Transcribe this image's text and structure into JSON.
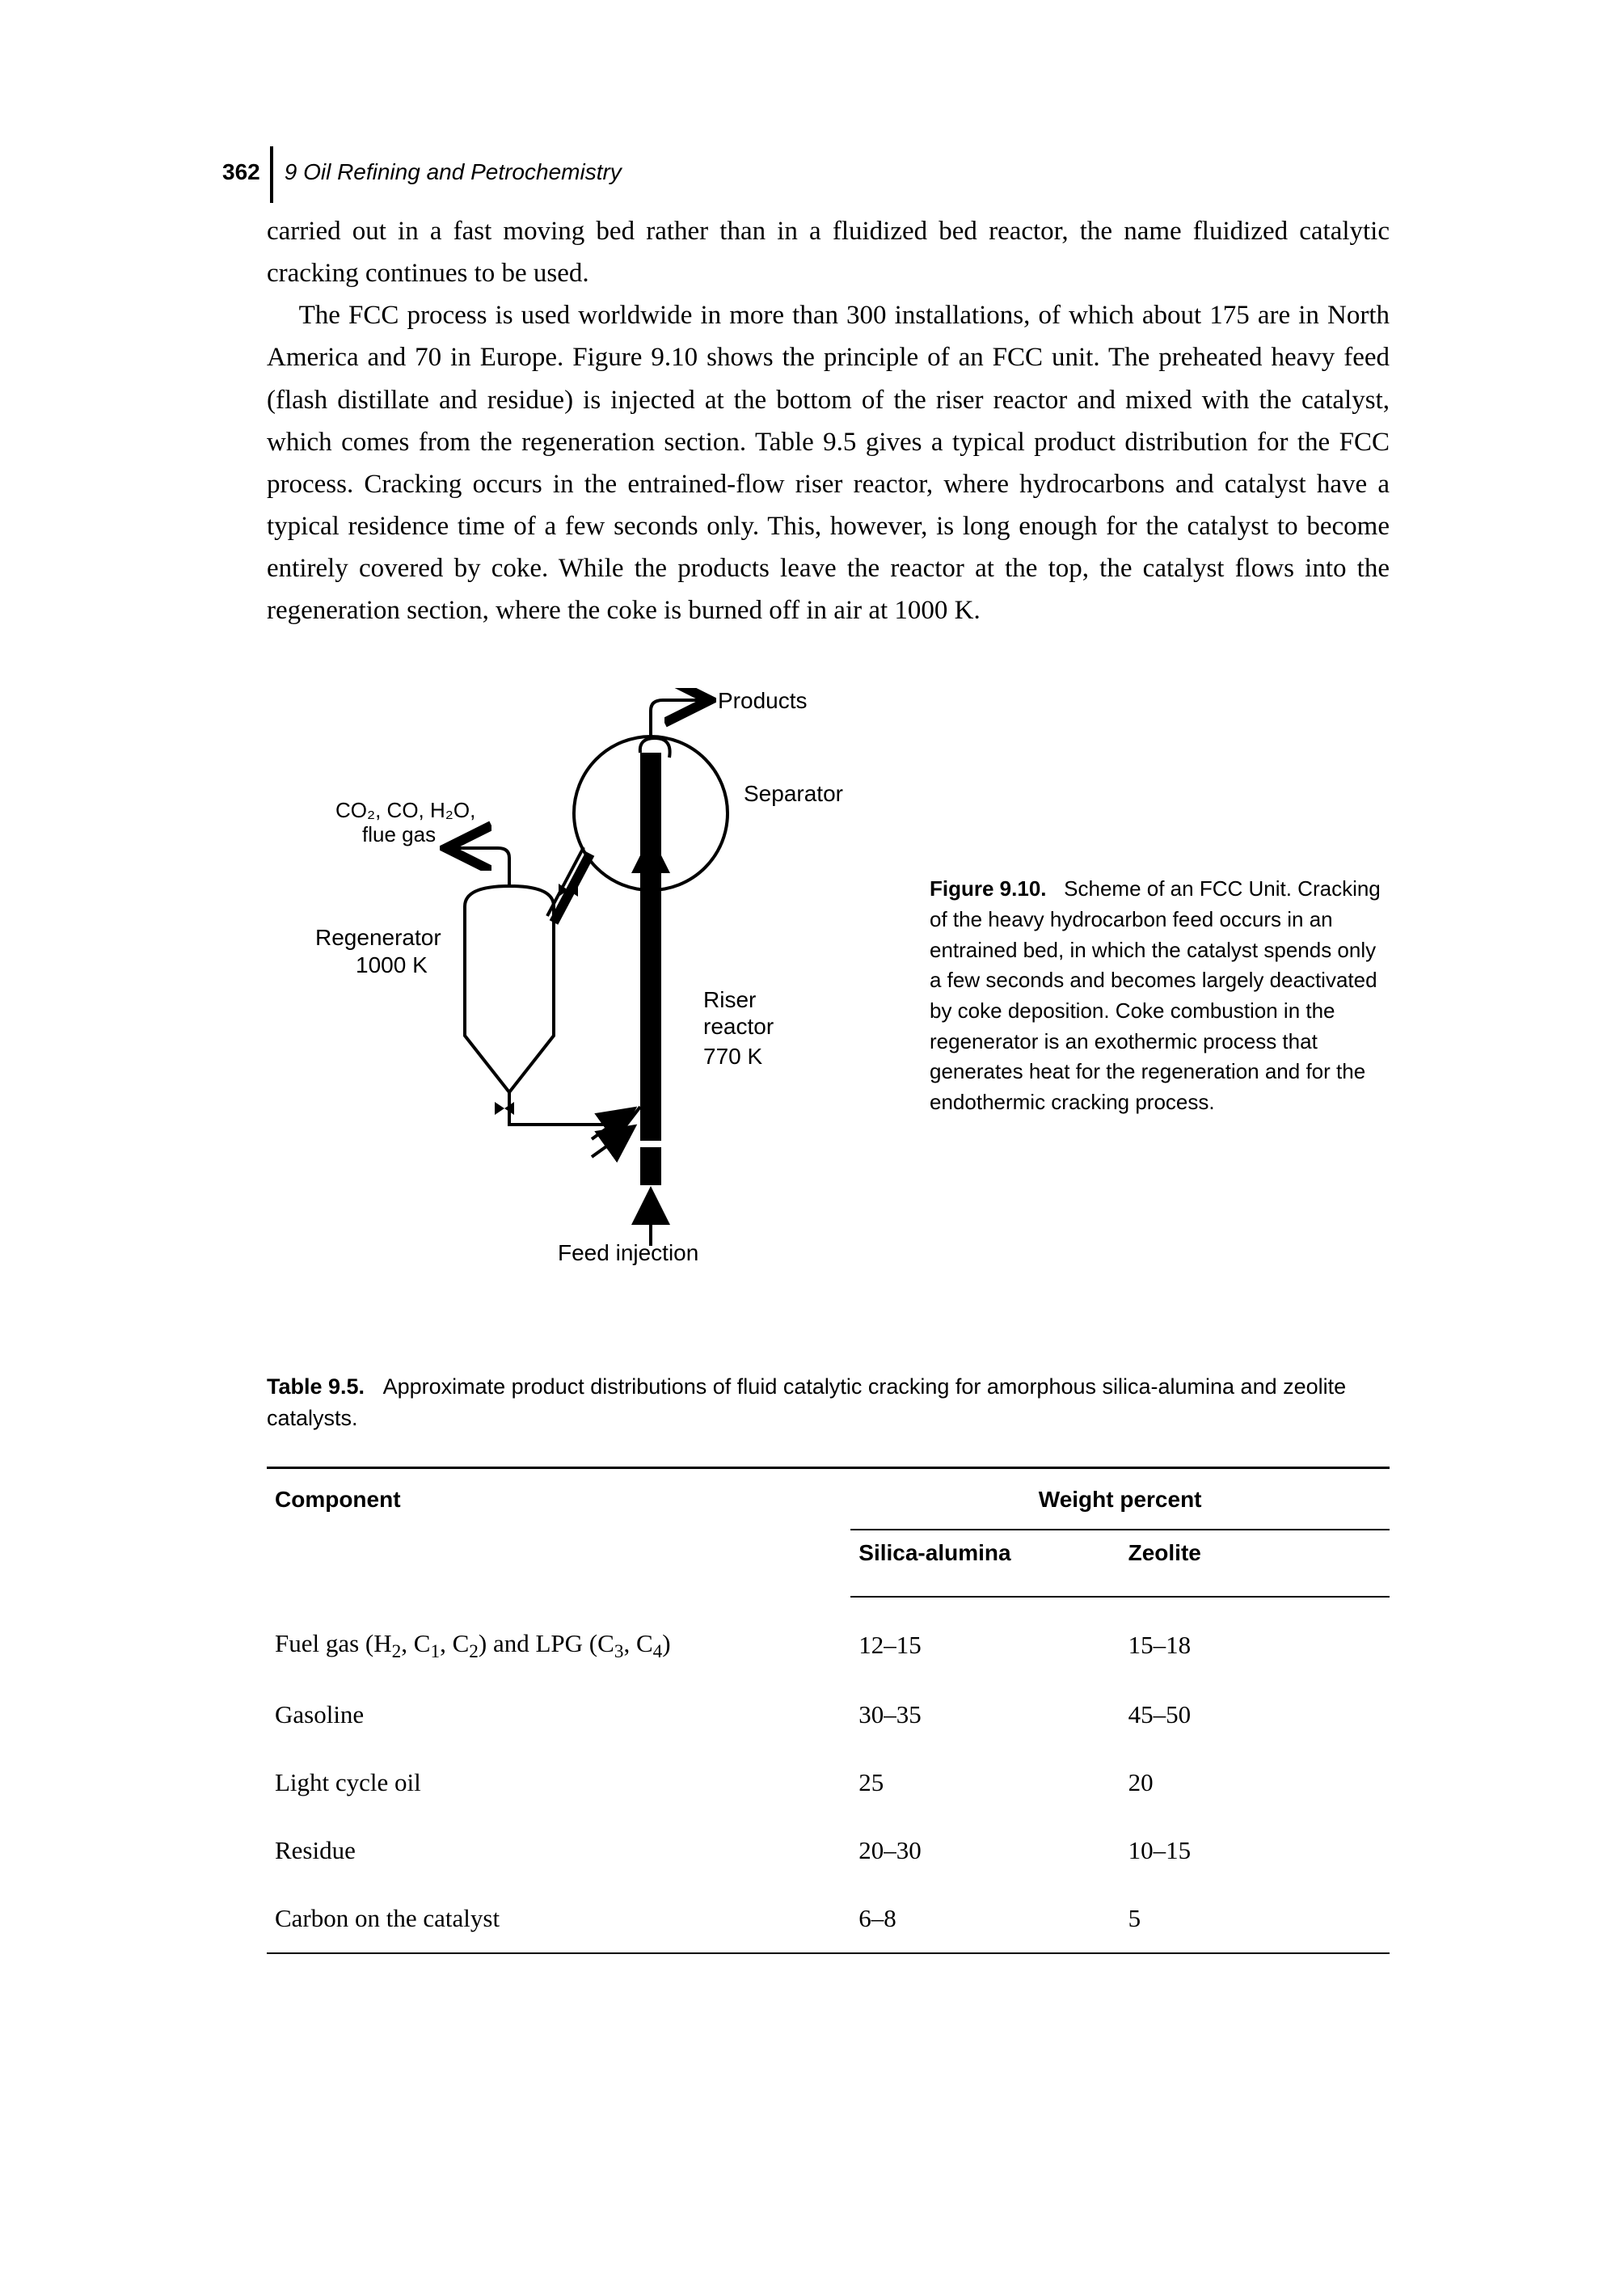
{
  "header": {
    "page_number": "362",
    "chapter": "9 Oil Refining and Petrochemistry"
  },
  "paragraphs": {
    "p1": "carried out in a fast moving bed rather than in a fluidized bed reactor, the name fluidized catalytic cracking continues to be used.",
    "p2": "The FCC process is used worldwide in more than 300 installations, of which about 175 are in North America and 70 in Europe. Figure 9.10 shows the principle of an FCC unit. The preheated heavy feed (flash distillate and residue) is injected at the bottom of the riser reactor and mixed with the catalyst, which comes from the regeneration section. Table 9.5 gives a typical product distribution for the FCC process. Cracking occurs in the entrained-flow riser reactor, where hydrocarbons and catalyst have a typical residence time of a few seconds only. This, however, is long enough for the catalyst to become entirely covered by coke. While the products leave the reactor at the top, the catalyst flows into the regeneration section, where the coke is burned off in air at 1000 K."
  },
  "figure": {
    "labels": {
      "products": "Products",
      "separator": "Separator",
      "flue_gas_line1": "CO₂, CO, H₂O,",
      "flue_gas_line2": "flue gas",
      "regenerator": "Regenerator",
      "regenerator_temp": "1000 K",
      "riser": "Riser",
      "reactor": "reactor",
      "riser_temp": "770 K",
      "feed": "Feed injection"
    },
    "caption_label": "Figure 9.10.",
    "caption_text": "Scheme of an FCC Unit. Cracking of the heavy hydrocarbon feed occurs in an entrained bed, in which the catalyst spends only a few seconds and becomes largely deactivated by coke deposition. Coke combustion in the regenerator is an exothermic process that generates heat for the regeneration and for the endothermic cracking process.",
    "style": {
      "stroke": "#000000",
      "stroke_width": 4,
      "font_size_label": 26,
      "font_size_small": 24,
      "fill_riser": "#000000"
    }
  },
  "table": {
    "caption_label": "Table 9.5.",
    "caption_text": "Approximate product distributions of fluid catalytic cracking for amorphous silica-alumina and zeolite catalysts.",
    "headers": {
      "component": "Component",
      "weight_percent": "Weight percent",
      "silica": "Silica-alumina",
      "zeolite": "Zeolite"
    },
    "rows": [
      {
        "component_html": "Fuel gas (H<sub>2</sub>, C<sub>1</sub>, C<sub>2</sub>) and LPG (C<sub>3</sub>, C<sub>4</sub>)",
        "sa": "12–15",
        "ze": "15–18"
      },
      {
        "component_html": "Gasoline",
        "sa": "30–35",
        "ze": "45–50"
      },
      {
        "component_html": "Light cycle oil",
        "sa": "25",
        "ze": "20"
      },
      {
        "component_html": "Residue",
        "sa": "20–30",
        "ze": "10–15"
      },
      {
        "component_html": "Carbon on the catalyst",
        "sa": "6–8",
        "ze": "5"
      }
    ]
  }
}
